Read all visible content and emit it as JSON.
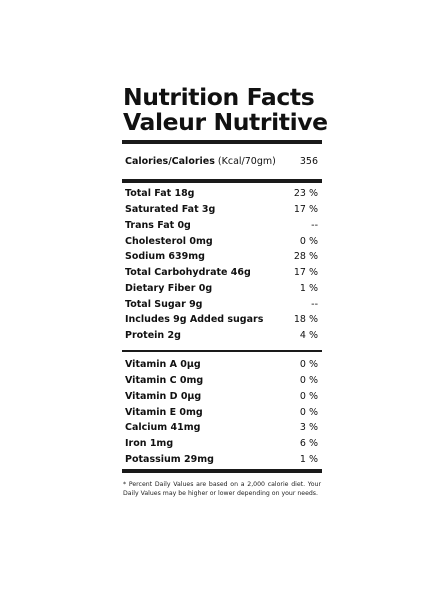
{
  "title_en": "Nutrition Facts",
  "title_fr": "Valeur Nutritive",
  "calories": {
    "label": "Calories/Calories",
    "unit": "(Kcal/70gm)",
    "value": "356"
  },
  "nutrients": [
    {
      "name": "Total Fat 18g",
      "dv": "23 %"
    },
    {
      "name": "Saturated Fat 3g",
      "dv": "17 %"
    },
    {
      "name": "Trans Fat 0g",
      "dv": "--"
    },
    {
      "name": "Cholesterol 0mg",
      "dv": "0 %"
    },
    {
      "name": "Sodium 639mg",
      "dv": "28 %"
    },
    {
      "name": "Total Carbohydrate 46g",
      "dv": "17 %"
    },
    {
      "name": "Dietary Fiber 0g",
      "dv": "1 %"
    },
    {
      "name": "Total Sugar 9g",
      "dv": "--"
    },
    {
      "name": "Includes 9g Added sugars",
      "dv": "18 %"
    },
    {
      "name": "Protein 2g",
      "dv": "4 %"
    }
  ],
  "vitamins": [
    {
      "name": "Vitamin A 0µg",
      "dv": "0 %"
    },
    {
      "name": "Vitamin C 0mg",
      "dv": "0 %"
    },
    {
      "name": "Vitamin D 0µg",
      "dv": "0 %"
    },
    {
      "name": "Vitamin E 0mg",
      "dv": "0 %"
    },
    {
      "name": "Calcium 41mg",
      "dv": "3 %"
    },
    {
      "name": "Iron 1mg",
      "dv": "6 %"
    },
    {
      "name": "Potassium 29mg",
      "dv": "1 %"
    }
  ],
  "footnote": "* Percent Daily Values are based on a 2,000 calorie diet. Your Daily Values may be higher or lower depending on your needs."
}
